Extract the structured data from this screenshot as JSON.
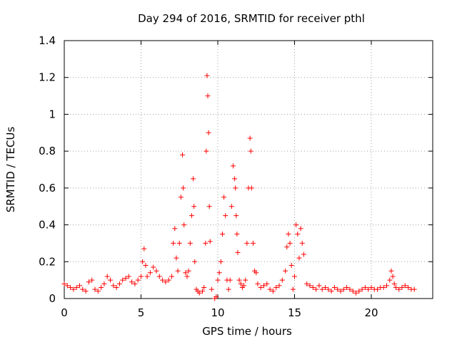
{
  "chart_data": {
    "type": "scatter",
    "title": "Day 294 of 2016, SRMTID for receiver pthl",
    "xlabel": "GPS time / hours",
    "ylabel": "SRMTID / TECUs",
    "xlim": [
      0,
      24
    ],
    "ylim": [
      0,
      1.4
    ],
    "xticks": [
      "0",
      "5",
      "10",
      "15",
      "20"
    ],
    "yticks": [
      "0",
      "0.2",
      "0.4",
      "0.6",
      "0.8",
      "1",
      "1.2",
      "1.4"
    ],
    "grid": true,
    "marker": "+",
    "color": "#ff0000",
    "x": [
      0.0,
      0.2,
      0.4,
      0.6,
      0.8,
      1.0,
      1.2,
      1.4,
      1.6,
      1.8,
      2.0,
      2.2,
      2.4,
      2.6,
      2.8,
      3.0,
      3.2,
      3.4,
      3.6,
      3.8,
      4.0,
      4.2,
      4.4,
      4.6,
      4.8,
      5.0,
      5.1,
      5.2,
      5.3,
      5.4,
      5.6,
      5.8,
      6.0,
      6.2,
      6.4,
      6.6,
      6.8,
      7.0,
      7.1,
      7.2,
      7.3,
      7.4,
      7.5,
      7.6,
      7.7,
      7.75,
      7.8,
      7.9,
      8.0,
      8.1,
      8.2,
      8.3,
      8.4,
      8.45,
      8.5,
      8.6,
      8.7,
      8.8,
      9.0,
      9.1,
      9.2,
      9.25,
      9.3,
      9.35,
      9.4,
      9.45,
      9.5,
      9.6,
      9.8,
      9.9,
      10.0,
      10.1,
      10.2,
      10.3,
      10.4,
      10.5,
      10.6,
      10.7,
      10.8,
      10.9,
      11.0,
      11.1,
      11.15,
      11.2,
      11.25,
      11.3,
      11.4,
      11.5,
      11.6,
      11.7,
      11.8,
      11.9,
      12.0,
      12.1,
      12.15,
      12.2,
      12.3,
      12.4,
      12.5,
      12.6,
      12.8,
      13.0,
      13.2,
      13.4,
      13.6,
      13.8,
      14.0,
      14.2,
      14.4,
      14.5,
      14.6,
      14.7,
      14.8,
      14.9,
      15.0,
      15.1,
      15.2,
      15.3,
      15.4,
      15.5,
      15.6,
      15.8,
      16.0,
      16.2,
      16.4,
      16.6,
      16.8,
      17.0,
      17.2,
      17.4,
      17.6,
      17.8,
      18.0,
      18.2,
      18.4,
      18.6,
      18.8,
      19.0,
      19.2,
      19.4,
      19.6,
      19.8,
      20.0,
      20.2,
      20.4,
      20.6,
      20.8,
      21.0,
      21.2,
      21.3,
      21.4,
      21.5,
      21.6,
      21.8,
      22.0,
      22.2,
      22.4,
      22.6,
      22.8
    ],
    "y": [
      0.08,
      0.07,
      0.06,
      0.05,
      0.06,
      0.07,
      0.05,
      0.04,
      0.09,
      0.1,
      0.05,
      0.04,
      0.06,
      0.08,
      0.12,
      0.1,
      0.07,
      0.06,
      0.08,
      0.1,
      0.11,
      0.12,
      0.09,
      0.08,
      0.1,
      0.12,
      0.2,
      0.27,
      0.18,
      0.12,
      0.14,
      0.17,
      0.15,
      0.12,
      0.1,
      0.09,
      0.1,
      0.12,
      0.3,
      0.38,
      0.22,
      0.15,
      0.3,
      0.55,
      0.78,
      0.6,
      0.4,
      0.14,
      0.12,
      0.15,
      0.3,
      0.45,
      0.65,
      0.5,
      0.2,
      0.05,
      0.04,
      0.03,
      0.04,
      0.06,
      0.3,
      0.8,
      1.21,
      1.1,
      0.9,
      0.5,
      0.31,
      0.05,
      0.0,
      0.01,
      0.1,
      0.14,
      0.2,
      0.35,
      0.55,
      0.45,
      0.1,
      0.05,
      0.1,
      0.5,
      0.72,
      0.65,
      0.6,
      0.45,
      0.35,
      0.25,
      0.1,
      0.08,
      0.06,
      0.07,
      0.1,
      0.3,
      0.6,
      0.87,
      0.8,
      0.6,
      0.3,
      0.15,
      0.14,
      0.08,
      0.06,
      0.07,
      0.08,
      0.05,
      0.04,
      0.06,
      0.07,
      0.1,
      0.15,
      0.28,
      0.35,
      0.3,
      0.18,
      0.05,
      0.12,
      0.4,
      0.35,
      0.22,
      0.38,
      0.3,
      0.24,
      0.08,
      0.07,
      0.06,
      0.05,
      0.07,
      0.05,
      0.06,
      0.05,
      0.04,
      0.06,
      0.05,
      0.04,
      0.05,
      0.06,
      0.05,
      0.04,
      0.03,
      0.04,
      0.05,
      0.06,
      0.05,
      0.06,
      0.05,
      0.05,
      0.06,
      0.06,
      0.07,
      0.1,
      0.15,
      0.12,
      0.08,
      0.06,
      0.05,
      0.06,
      0.07,
      0.06,
      0.05,
      0.05
    ]
  }
}
